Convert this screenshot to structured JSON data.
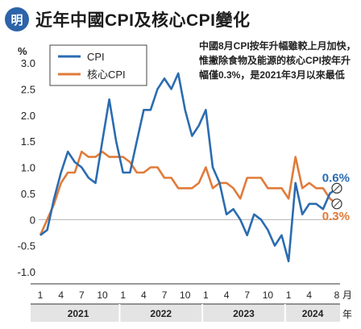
{
  "header": {
    "logo_text": "明",
    "title": "近年中國CPI及核心CPI變化"
  },
  "annotation": "中國8月CPI按年升幅雖較上月加快，惟撇除食物及能源的核心CPI按年升幅僅0.3%，是2021年3月以來最低",
  "chart_data": {
    "type": "line",
    "title": "近年中國CPI及核心CPI變化",
    "ylabel": "%",
    "xlabel": "月 / 年",
    "ylim": [
      -1.0,
      3.0
    ],
    "yticks": [
      "3.0",
      "2.5",
      "2.0",
      "1.5",
      "1.0",
      "0.5",
      "0",
      "-0.5",
      "-1.0"
    ],
    "month_ticks": [
      {
        "label": "1",
        "index": 0
      },
      {
        "label": "4",
        "index": 3
      },
      {
        "label": "7",
        "index": 6
      },
      {
        "label": "10",
        "index": 9
      },
      {
        "label": "1",
        "index": 12
      },
      {
        "label": "4",
        "index": 15
      },
      {
        "label": "7",
        "index": 18
      },
      {
        "label": "10",
        "index": 21
      },
      {
        "label": "1",
        "index": 24
      },
      {
        "label": "4",
        "index": 27
      },
      {
        "label": "7",
        "index": 30
      },
      {
        "label": "10",
        "index": 33
      },
      {
        "label": "1",
        "index": 36
      },
      {
        "label": "4",
        "index": 39
      },
      {
        "label": "8",
        "index": 43
      }
    ],
    "month_unit": "月",
    "year_unit": "年",
    "years": [
      {
        "label": "2021",
        "start": 0,
        "end": 11
      },
      {
        "label": "2022",
        "start": 12,
        "end": 23
      },
      {
        "label": "2023",
        "start": 24,
        "end": 35
      },
      {
        "label": "2024",
        "start": 36,
        "end": 43
      }
    ],
    "x_count": 44,
    "legend_position": "top-left",
    "series": [
      {
        "name": "CPI",
        "color": "#2b6cb0",
        "end_label": "0.6%",
        "values": [
          -0.3,
          -0.2,
          0.4,
          0.9,
          1.3,
          1.1,
          1.0,
          0.8,
          0.7,
          1.5,
          2.3,
          1.5,
          0.9,
          0.9,
          1.5,
          2.1,
          2.1,
          2.5,
          2.7,
          2.5,
          2.8,
          2.1,
          1.6,
          1.8,
          2.1,
          1.0,
          0.7,
          0.1,
          0.2,
          0.0,
          -0.3,
          0.1,
          0.0,
          -0.2,
          -0.5,
          -0.3,
          -0.8,
          0.7,
          0.1,
          0.3,
          0.3,
          0.2,
          0.5,
          0.6
        ]
      },
      {
        "name": "核心CPI",
        "color": "#e07b3a",
        "end_label": "0.3%",
        "values": [
          -0.3,
          0.0,
          0.3,
          0.7,
          0.9,
          0.9,
          1.3,
          1.2,
          1.2,
          1.3,
          1.2,
          1.2,
          1.2,
          1.1,
          0.9,
          0.9,
          1.0,
          1.0,
          0.8,
          0.8,
          0.6,
          0.6,
          0.6,
          0.7,
          1.0,
          0.6,
          0.7,
          0.7,
          0.6,
          0.4,
          0.8,
          0.8,
          0.8,
          0.6,
          0.6,
          0.6,
          0.4,
          1.2,
          0.6,
          0.7,
          0.6,
          0.6,
          0.4,
          0.3
        ]
      }
    ]
  }
}
